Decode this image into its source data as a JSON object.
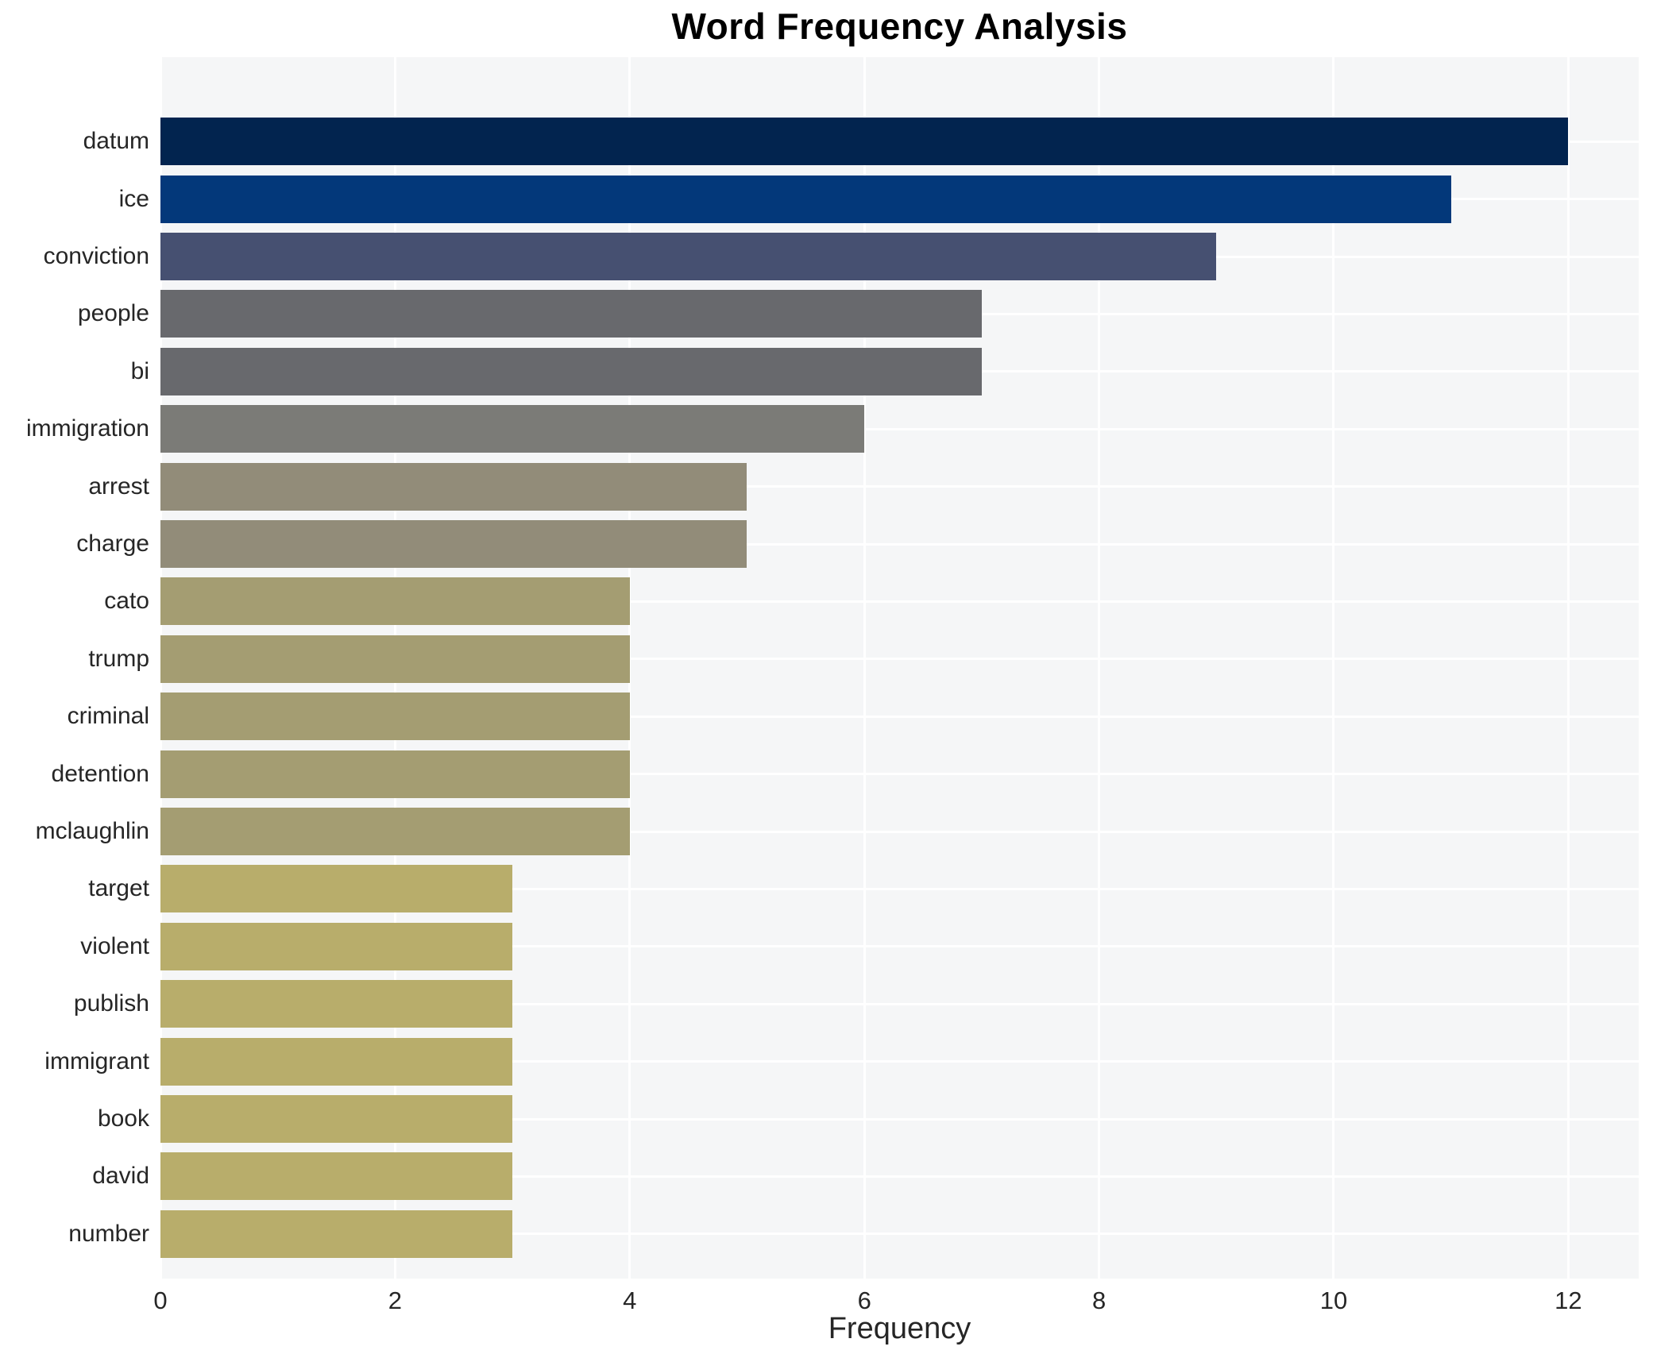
{
  "chart_data": {
    "type": "bar",
    "orientation": "horizontal",
    "title": "Word Frequency Analysis",
    "xlabel": "Frequency",
    "ylabel": "",
    "categories": [
      "datum",
      "ice",
      "conviction",
      "people",
      "bi",
      "immigration",
      "arrest",
      "charge",
      "cato",
      "trump",
      "criminal",
      "detention",
      "mclaughlin",
      "target",
      "violent",
      "publish",
      "immigrant",
      "book",
      "david",
      "number"
    ],
    "values": [
      12,
      11,
      9,
      7,
      7,
      6,
      5,
      5,
      4,
      4,
      4,
      4,
      4,
      3,
      3,
      3,
      3,
      3,
      3,
      3
    ],
    "bar_colors": [
      "#02244f",
      "#03387a",
      "#465071",
      "#68696d",
      "#68696d",
      "#7b7b77",
      "#928c79",
      "#928c79",
      "#a49d72",
      "#a49d72",
      "#a49d72",
      "#a49d72",
      "#a49d72",
      "#b8ad6b",
      "#b8ad6b",
      "#b8ad6b",
      "#b8ad6b",
      "#b8ad6b",
      "#b8ad6b",
      "#b8ad6b"
    ],
    "xlim": [
      0,
      12.6
    ],
    "xticks": [
      0,
      2,
      4,
      6,
      8,
      10,
      12
    ],
    "legend_position": "none",
    "grid": "on",
    "plot_background": "#f5f6f7",
    "grid_color": "#ffffff",
    "text_color": "#262626"
  }
}
